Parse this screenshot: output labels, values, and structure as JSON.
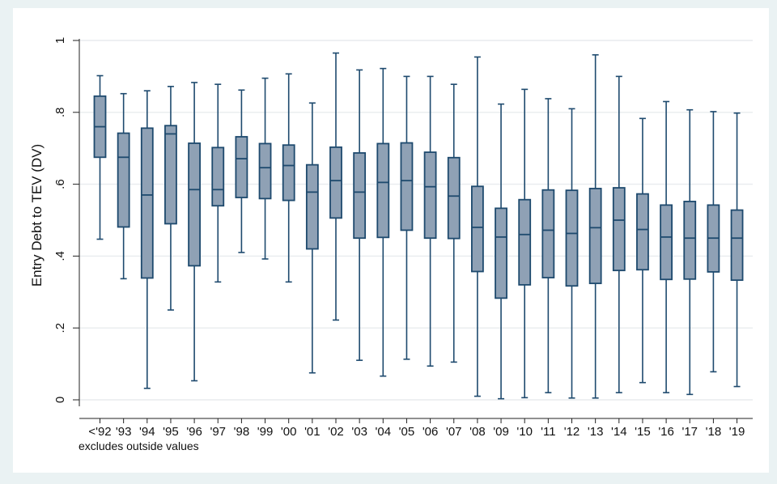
{
  "chart_data": {
    "type": "box",
    "ylabel": "Entry Debt to TEV (DV)",
    "xlabel": "",
    "ylim": [
      0,
      1
    ],
    "yticks": [
      {
        "value": 0,
        "label": "0"
      },
      {
        "value": 0.2,
        "label": ".2"
      },
      {
        "value": 0.4,
        "label": ".4"
      },
      {
        "value": 0.6,
        "label": ".6"
      },
      {
        "value": 0.8,
        "label": ".8"
      },
      {
        "value": 1,
        "label": "1"
      }
    ],
    "grid": true,
    "note": "excludes outside values",
    "categories": [
      "<'92",
      "'93",
      "'94",
      "'95",
      "'96",
      "'97",
      "'98",
      "'99",
      "'00",
      "'01",
      "'02",
      "'03",
      "'04",
      "'05",
      "'06",
      "'07",
      "'08",
      "'09",
      "'10",
      "'11",
      "'12",
      "'13",
      "'14",
      "'15",
      "'16",
      "'17",
      "'18",
      "'19"
    ],
    "boxes": [
      {
        "min": 0.447,
        "q1": 0.675,
        "median": 0.76,
        "q3": 0.845,
        "max": 0.902
      },
      {
        "min": 0.337,
        "q1": 0.481,
        "median": 0.675,
        "q3": 0.742,
        "max": 0.852
      },
      {
        "min": 0.032,
        "q1": 0.339,
        "median": 0.57,
        "q3": 0.756,
        "max": 0.86
      },
      {
        "min": 0.25,
        "q1": 0.49,
        "median": 0.74,
        "q3": 0.763,
        "max": 0.872
      },
      {
        "min": 0.053,
        "q1": 0.373,
        "median": 0.585,
        "q3": 0.714,
        "max": 0.883
      },
      {
        "min": 0.328,
        "q1": 0.54,
        "median": 0.585,
        "q3": 0.702,
        "max": 0.878
      },
      {
        "min": 0.41,
        "q1": 0.563,
        "median": 0.671,
        "q3": 0.732,
        "max": 0.862
      },
      {
        "min": 0.392,
        "q1": 0.56,
        "median": 0.646,
        "q3": 0.713,
        "max": 0.895
      },
      {
        "min": 0.328,
        "q1": 0.555,
        "median": 0.652,
        "q3": 0.709,
        "max": 0.907
      },
      {
        "min": 0.075,
        "q1": 0.42,
        "median": 0.578,
        "q3": 0.654,
        "max": 0.826
      },
      {
        "min": 0.222,
        "q1": 0.506,
        "median": 0.61,
        "q3": 0.703,
        "max": 0.965
      },
      {
        "min": 0.11,
        "q1": 0.45,
        "median": 0.578,
        "q3": 0.687,
        "max": 0.918
      },
      {
        "min": 0.066,
        "q1": 0.452,
        "median": 0.605,
        "q3": 0.713,
        "max": 0.922
      },
      {
        "min": 0.113,
        "q1": 0.472,
        "median": 0.61,
        "q3": 0.715,
        "max": 0.9
      },
      {
        "min": 0.094,
        "q1": 0.45,
        "median": 0.593,
        "q3": 0.689,
        "max": 0.9
      },
      {
        "min": 0.105,
        "q1": 0.449,
        "median": 0.567,
        "q3": 0.674,
        "max": 0.878
      },
      {
        "min": 0.01,
        "q1": 0.357,
        "median": 0.48,
        "q3": 0.594,
        "max": 0.954
      },
      {
        "min": 0.003,
        "q1": 0.283,
        "median": 0.453,
        "q3": 0.533,
        "max": 0.823
      },
      {
        "min": 0.006,
        "q1": 0.32,
        "median": 0.46,
        "q3": 0.557,
        "max": 0.864
      },
      {
        "min": 0.02,
        "q1": 0.34,
        "median": 0.472,
        "q3": 0.584,
        "max": 0.838
      },
      {
        "min": 0.005,
        "q1": 0.317,
        "median": 0.463,
        "q3": 0.583,
        "max": 0.81
      },
      {
        "min": 0.005,
        "q1": 0.324,
        "median": 0.479,
        "q3": 0.588,
        "max": 0.96
      },
      {
        "min": 0.02,
        "q1": 0.36,
        "median": 0.5,
        "q3": 0.59,
        "max": 0.9
      },
      {
        "min": 0.048,
        "q1": 0.362,
        "median": 0.474,
        "q3": 0.573,
        "max": 0.783
      },
      {
        "min": 0.02,
        "q1": 0.335,
        "median": 0.453,
        "q3": 0.542,
        "max": 0.83
      },
      {
        "min": 0.015,
        "q1": 0.336,
        "median": 0.45,
        "q3": 0.552,
        "max": 0.807
      },
      {
        "min": 0.078,
        "q1": 0.356,
        "median": 0.45,
        "q3": 0.542,
        "max": 0.802
      },
      {
        "min": 0.037,
        "q1": 0.333,
        "median": 0.45,
        "q3": 0.528,
        "max": 0.798
      }
    ],
    "colors": {
      "box_fill": "#8fa1b5",
      "box_stroke": "#1e4a6e",
      "whisker": "#1e4a6e",
      "grid": "#e8ecee",
      "outer_background": "#eaf2f3",
      "plot_background": "#ffffff"
    }
  }
}
